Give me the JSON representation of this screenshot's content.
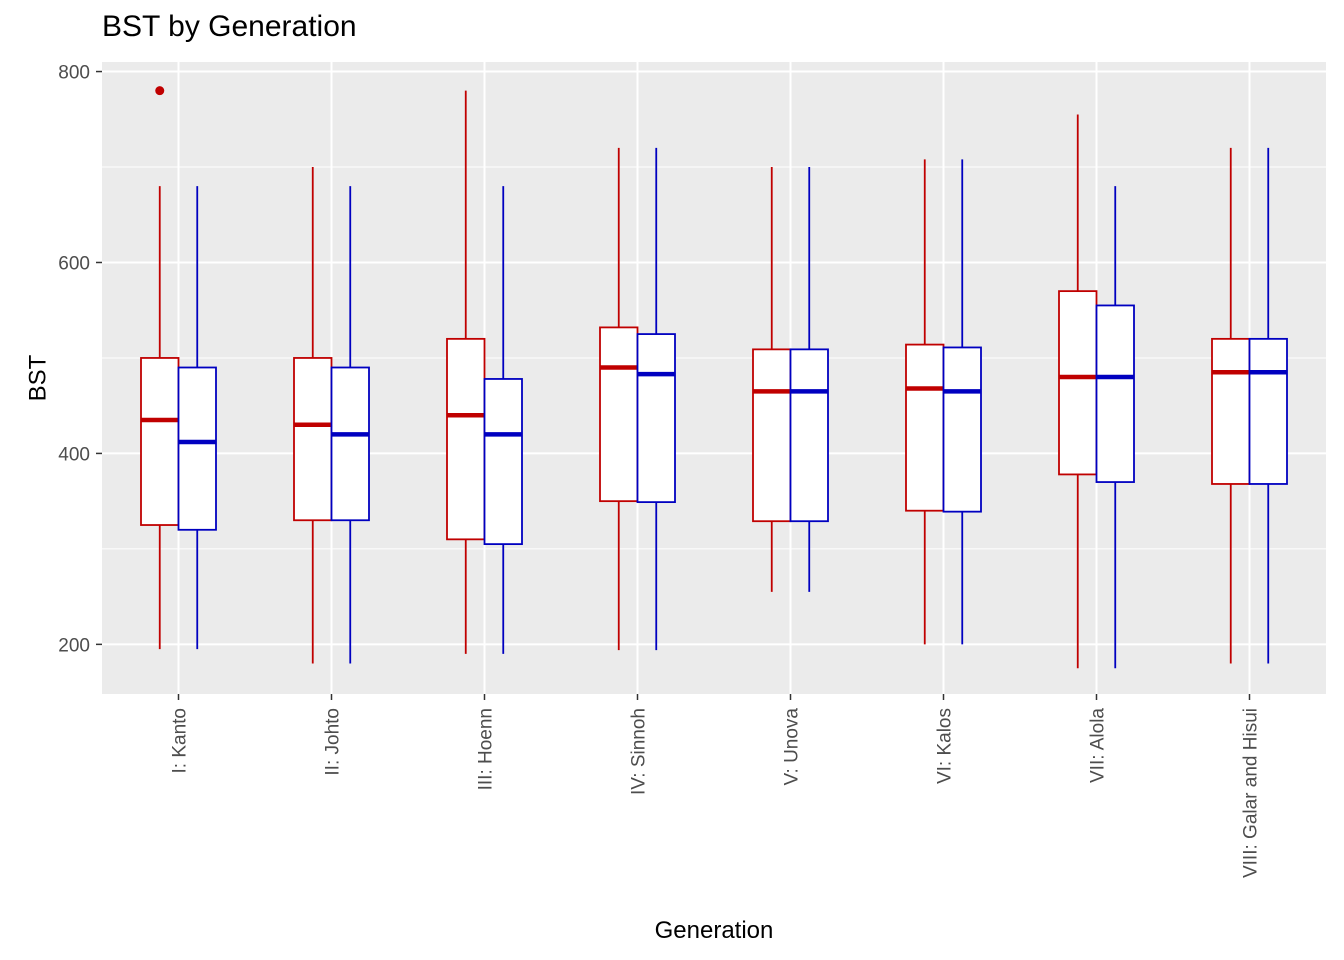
{
  "chart_data": {
    "type": "box",
    "title": "BST by Generation",
    "xlabel": "Generation",
    "ylabel": "BST",
    "ylim": [
      148,
      810
    ],
    "yticks": [
      200,
      400,
      600,
      800
    ],
    "grid": true,
    "legend": "none",
    "categories": [
      "I: Kanto",
      "II: Johto",
      "III: Hoenn",
      "IV: Sinnoh",
      "V: Unova",
      "VI: Kalos",
      "VII: Alola",
      "VIII: Galar and Hisui"
    ],
    "series": [
      {
        "color": "#c00000",
        "boxes": [
          {
            "min": 195,
            "q1": 325,
            "median": 435,
            "q3": 500,
            "max": 680,
            "outliers": [
              780
            ]
          },
          {
            "min": 180,
            "q1": 330,
            "median": 430,
            "q3": 500,
            "max": 700,
            "outliers": []
          },
          {
            "min": 190,
            "q1": 310,
            "median": 440,
            "q3": 520,
            "max": 780,
            "outliers": []
          },
          {
            "min": 194,
            "q1": 350,
            "median": 490,
            "q3": 532,
            "max": 720,
            "outliers": []
          },
          {
            "min": 255,
            "q1": 329,
            "median": 465,
            "q3": 509,
            "max": 700,
            "outliers": []
          },
          {
            "min": 200,
            "q1": 340,
            "median": 468,
            "q3": 514,
            "max": 708,
            "outliers": []
          },
          {
            "min": 175,
            "q1": 378,
            "median": 480,
            "q3": 570,
            "max": 755,
            "outliers": []
          },
          {
            "min": 180,
            "q1": 368,
            "median": 485,
            "q3": 520,
            "max": 720,
            "outliers": []
          }
        ]
      },
      {
        "color": "#0000c0",
        "boxes": [
          {
            "min": 195,
            "q1": 320,
            "median": 412,
            "q3": 490,
            "max": 680,
            "outliers": []
          },
          {
            "min": 180,
            "q1": 330,
            "median": 420,
            "q3": 490,
            "max": 680,
            "outliers": []
          },
          {
            "min": 190,
            "q1": 305,
            "median": 420,
            "q3": 478,
            "max": 680,
            "outliers": []
          },
          {
            "min": 194,
            "q1": 349,
            "median": 483,
            "q3": 525,
            "max": 720,
            "outliers": []
          },
          {
            "min": 255,
            "q1": 329,
            "median": 465,
            "q3": 509,
            "max": 700,
            "outliers": []
          },
          {
            "min": 200,
            "q1": 339,
            "median": 465,
            "q3": 511,
            "max": 708,
            "outliers": []
          },
          {
            "min": 175,
            "q1": 370,
            "median": 480,
            "q3": 555,
            "max": 680,
            "outliers": []
          },
          {
            "min": 180,
            "q1": 368,
            "median": 485,
            "q3": 520,
            "max": 720,
            "outliers": []
          }
        ]
      }
    ]
  }
}
